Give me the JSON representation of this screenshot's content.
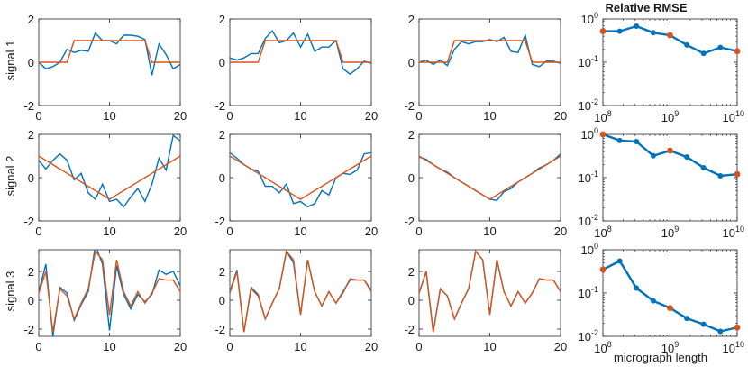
{
  "figure": {
    "row_labels": [
      "signal 1",
      "signal 2",
      "signal 3"
    ],
    "rmse_title": "Relative RMSE",
    "rmse_xlabel": "micrograph length"
  },
  "colors": {
    "estimate": "#0072BD",
    "truth": "#D95319",
    "marker": "#D95319",
    "axis": "#262626"
  },
  "chart_data": [
    {
      "type": "line",
      "row": 0,
      "col": 0,
      "xlim": [
        0,
        20
      ],
      "ylim": [
        -2,
        2
      ],
      "x_ticks": [
        0,
        10,
        20
      ],
      "y_ticks": [
        -2,
        0,
        2
      ],
      "series": [
        {
          "values": [
            0,
            -0.3,
            -0.2,
            0,
            0.6,
            0.45,
            0.55,
            0.5,
            1.35,
            1.0,
            1.0,
            0.85,
            1.25,
            1.25,
            1.2,
            1.05,
            -0.6,
            0.85,
            0.35,
            -0.3,
            -0.1
          ]
        },
        {
          "values": [
            0,
            0,
            0,
            0,
            0,
            1,
            1,
            1,
            1,
            1,
            1,
            1,
            1,
            1,
            1,
            1,
            0,
            0,
            0,
            0,
            0
          ]
        }
      ]
    },
    {
      "type": "line",
      "row": 0,
      "col": 1,
      "xlim": [
        0,
        20
      ],
      "ylim": [
        -2,
        2
      ],
      "x_ticks": [
        0,
        10,
        20
      ],
      "y_ticks": [
        -2,
        0,
        2
      ],
      "series": [
        {
          "values": [
            0.2,
            0.1,
            0.2,
            0.4,
            0.4,
            1.1,
            1.45,
            0.9,
            1.0,
            1.35,
            0.7,
            1.3,
            0.5,
            0.7,
            0.7,
            1.0,
            -0.3,
            -0.55,
            -0.3,
            0.05,
            -0.05
          ]
        },
        {
          "values": [
            0,
            0,
            0,
            0,
            0,
            1,
            1,
            1,
            1,
            1,
            1,
            1,
            1,
            1,
            1,
            1,
            0,
            0,
            0,
            0,
            0
          ]
        }
      ]
    },
    {
      "type": "line",
      "row": 0,
      "col": 2,
      "xlim": [
        0,
        20
      ],
      "ylim": [
        -2,
        2
      ],
      "x_ticks": [
        0,
        10,
        20
      ],
      "y_ticks": [
        -2,
        0,
        2
      ],
      "series": [
        {
          "values": [
            0,
            0.1,
            -0.1,
            0.1,
            -0.15,
            0.6,
            0.95,
            0.85,
            0.95,
            0.95,
            1.05,
            0.95,
            1.15,
            0.5,
            0.45,
            1.25,
            -0.1,
            -0.2,
            0.05,
            0.05,
            -0.05
          ]
        },
        {
          "values": [
            0,
            0,
            0,
            0,
            0,
            1,
            1,
            1,
            1,
            1,
            1,
            1,
            1,
            1,
            1,
            1,
            0,
            0,
            0,
            0,
            0
          ]
        }
      ]
    },
    {
      "type": "line",
      "row": 1,
      "col": 0,
      "xlim": [
        0,
        20
      ],
      "ylim": [
        -2,
        2
      ],
      "x_ticks": [
        0,
        10,
        20
      ],
      "y_ticks": [
        -2,
        0,
        2
      ],
      "series": [
        {
          "values": [
            0.8,
            0.4,
            0.8,
            1.1,
            0.8,
            -0.1,
            0.2,
            -0.7,
            -1.0,
            -0.3,
            -1.1,
            -1.0,
            -1.35,
            -0.9,
            -0.5,
            -1.1,
            -0.3,
            0.9,
            0.35,
            1.95,
            1.7
          ]
        },
        {
          "values": [
            1.0,
            0.8,
            0.6,
            0.4,
            0.2,
            0,
            -0.2,
            -0.4,
            -0.6,
            -0.8,
            -1.0,
            -0.8,
            -0.6,
            -0.4,
            -0.2,
            0,
            0.2,
            0.4,
            0.6,
            0.8,
            1.0
          ]
        }
      ]
    },
    {
      "type": "line",
      "row": 1,
      "col": 1,
      "xlim": [
        0,
        20
      ],
      "ylim": [
        -2,
        2
      ],
      "x_ticks": [
        0,
        10,
        20
      ],
      "y_ticks": [
        -2,
        0,
        2
      ],
      "series": [
        {
          "values": [
            1.15,
            0.9,
            0.6,
            0.4,
            0.3,
            -0.4,
            -0.4,
            -0.7,
            -0.3,
            -1.2,
            -1.1,
            -1.35,
            -1.2,
            -0.6,
            -0.8,
            0,
            0.2,
            0.15,
            0.35,
            1.1,
            1.15
          ]
        },
        {
          "values": [
            1.0,
            0.8,
            0.6,
            0.4,
            0.2,
            0,
            -0.2,
            -0.4,
            -0.6,
            -0.8,
            -1.0,
            -0.8,
            -0.6,
            -0.4,
            -0.2,
            0,
            0.2,
            0.4,
            0.6,
            0.8,
            1.0
          ]
        }
      ]
    },
    {
      "type": "line",
      "row": 1,
      "col": 2,
      "xlim": [
        0,
        20
      ],
      "ylim": [
        -2,
        2
      ],
      "x_ticks": [
        0,
        10,
        20
      ],
      "y_ticks": [
        -2,
        0,
        2
      ],
      "series": [
        {
          "values": [
            0.95,
            0.85,
            0.6,
            0.4,
            0.25,
            0,
            -0.2,
            -0.4,
            -0.6,
            -0.8,
            -1.0,
            -1.05,
            -0.65,
            -0.5,
            -0.2,
            0,
            0.2,
            0.45,
            0.6,
            0.8,
            1.1
          ]
        },
        {
          "values": [
            1.0,
            0.8,
            0.6,
            0.4,
            0.2,
            0,
            -0.2,
            -0.4,
            -0.6,
            -0.8,
            -1.0,
            -0.8,
            -0.6,
            -0.4,
            -0.2,
            0,
            0.2,
            0.4,
            0.6,
            0.8,
            1.0
          ]
        }
      ]
    },
    {
      "type": "line",
      "row": 2,
      "col": 0,
      "xlim": [
        0,
        20
      ],
      "ylim": [
        -2.5,
        3.5
      ],
      "x_ticks": [
        0,
        10,
        20
      ],
      "y_ticks": [
        -2,
        0,
        2
      ],
      "series": [
        {
          "values": [
            0.6,
            2.5,
            -2.5,
            0.9,
            0.5,
            -1.4,
            -0.3,
            0.6,
            3.8,
            2.5,
            -2.1,
            2.4,
            0.4,
            -0.6,
            0.4,
            -0.1,
            0.4,
            2.1,
            1.8,
            2.0,
            1.0
          ]
        },
        {
          "values": [
            0.5,
            2.0,
            -2.2,
            0.8,
            0.3,
            -1.3,
            -0.2,
            0.8,
            3.4,
            2.8,
            -1.0,
            2.8,
            0.6,
            -0.4,
            0.6,
            -0.2,
            0.5,
            1.5,
            1.4,
            1.4,
            0.6
          ]
        }
      ]
    },
    {
      "type": "line",
      "row": 2,
      "col": 1,
      "xlim": [
        0,
        20
      ],
      "ylim": [
        -2.5,
        3.5
      ],
      "x_ticks": [
        0,
        10,
        20
      ],
      "y_ticks": [
        -2,
        0,
        2
      ],
      "series": [
        {
          "values": [
            0.6,
            2.1,
            -2.2,
            0.9,
            0.4,
            -1.3,
            -0.2,
            0.8,
            3.4,
            2.6,
            -1.0,
            2.8,
            0.6,
            -0.4,
            0.6,
            -0.2,
            0.6,
            1.4,
            1.4,
            1.4,
            0.7
          ]
        },
        {
          "values": [
            0.5,
            2.0,
            -2.2,
            0.8,
            0.3,
            -1.3,
            -0.2,
            0.8,
            3.4,
            2.8,
            -1.0,
            2.8,
            0.6,
            -0.4,
            0.6,
            -0.2,
            0.5,
            1.5,
            1.4,
            1.4,
            0.6
          ]
        }
      ]
    },
    {
      "type": "line",
      "row": 2,
      "col": 2,
      "xlim": [
        0,
        20
      ],
      "ylim": [
        -2.5,
        3.5
      ],
      "x_ticks": [
        0,
        10,
        20
      ],
      "y_ticks": [
        -2,
        0,
        2
      ],
      "series": [
        {
          "values": [
            0.5,
            2.0,
            -2.2,
            0.8,
            0.3,
            -1.3,
            -0.2,
            0.8,
            3.4,
            2.8,
            -1.0,
            2.8,
            0.6,
            -0.4,
            0.6,
            -0.2,
            0.5,
            1.5,
            1.4,
            1.4,
            0.6
          ]
        },
        {
          "values": [
            0.5,
            2.0,
            -2.2,
            0.8,
            0.3,
            -1.3,
            -0.2,
            0.8,
            3.4,
            2.8,
            -1.0,
            2.8,
            0.6,
            -0.4,
            0.6,
            -0.2,
            0.5,
            1.5,
            1.4,
            1.4,
            0.6
          ]
        }
      ]
    },
    {
      "type": "line",
      "row": 0,
      "col": 3,
      "log_scale": true,
      "xlim": [
        100000000.0,
        10000000000.0
      ],
      "ylim": [
        0.01,
        1
      ],
      "x_ticks": [
        8,
        9,
        10
      ],
      "y_ticks": [
        -2,
        -1,
        0
      ],
      "x": [
        100000000.0,
        178000000.0,
        316000000.0,
        562000000.0,
        1000000000.0,
        1780000000.0,
        3160000000.0,
        5620000000.0,
        10000000000.0
      ],
      "values": [
        0.52,
        0.52,
        0.68,
        0.48,
        0.42,
        0.25,
        0.16,
        0.22,
        0.18
      ],
      "marked": [
        0,
        4,
        8
      ]
    },
    {
      "type": "line",
      "row": 1,
      "col": 3,
      "log_scale": true,
      "xlim": [
        100000000.0,
        10000000000.0
      ],
      "ylim": [
        0.01,
        1
      ],
      "x_ticks": [
        8,
        9,
        10
      ],
      "y_ticks": [
        -2,
        -1,
        0
      ],
      "x": [
        100000000.0,
        178000000.0,
        316000000.0,
        562000000.0,
        1000000000.0,
        1780000000.0,
        3160000000.0,
        5620000000.0,
        10000000000.0
      ],
      "values": [
        1.0,
        0.72,
        0.68,
        0.32,
        0.42,
        0.3,
        0.17,
        0.11,
        0.12
      ],
      "marked": [
        0,
        4,
        8
      ]
    },
    {
      "type": "line",
      "row": 2,
      "col": 3,
      "log_scale": true,
      "xlim": [
        100000000.0,
        10000000000.0
      ],
      "ylim": [
        0.01,
        1
      ],
      "x_ticks": [
        8,
        9,
        10
      ],
      "y_ticks": [
        -2,
        -1,
        0
      ],
      "x": [
        100000000.0,
        178000000.0,
        316000000.0,
        562000000.0,
        1000000000.0,
        1780000000.0,
        3160000000.0,
        5620000000.0,
        10000000000.0
      ],
      "values": [
        0.35,
        0.55,
        0.13,
        0.066,
        0.045,
        0.026,
        0.019,
        0.013,
        0.016
      ],
      "marked": [
        0,
        4,
        8
      ]
    }
  ]
}
